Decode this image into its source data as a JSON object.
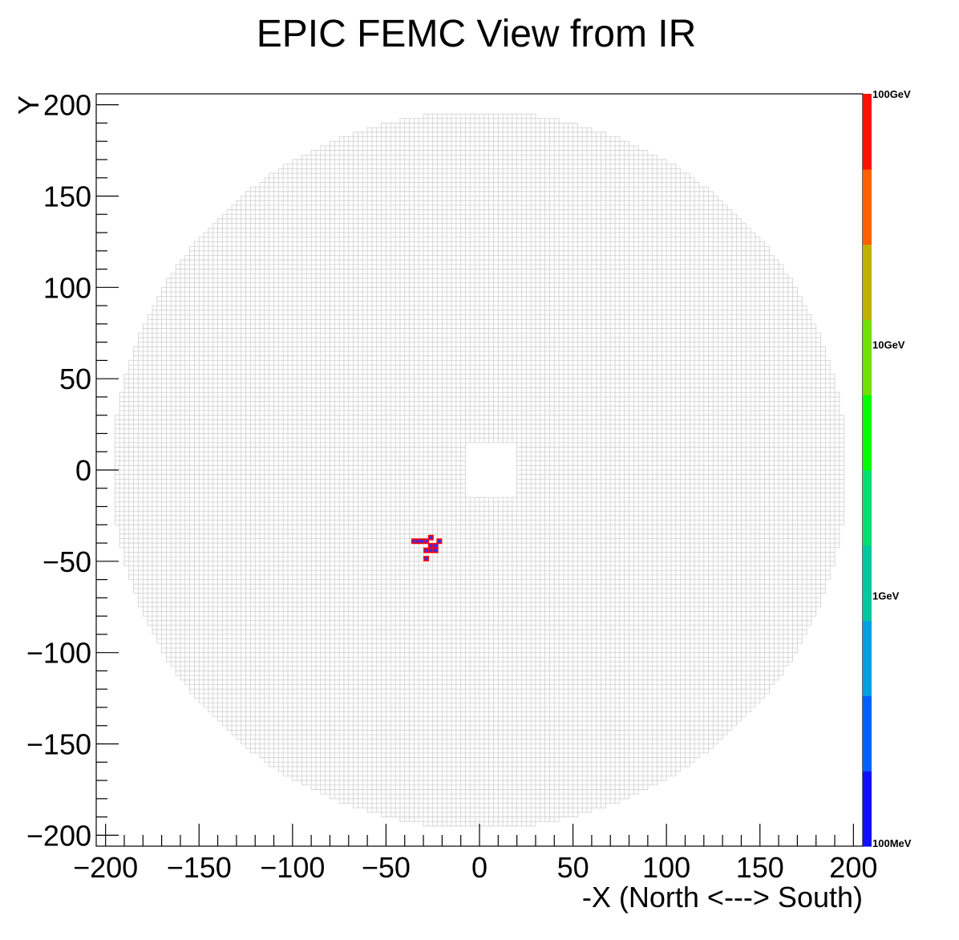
{
  "chart_data": {
    "type": "heatmap",
    "title": "EPIC FEMC View from IR",
    "xlabel": "-X (North <---> South)",
    "ylabel": "Y",
    "xlim": [
      -205,
      205
    ],
    "ylim": [
      -206,
      206
    ],
    "x_ticks": [
      {
        "value": -200,
        "label": "−200"
      },
      {
        "value": -150,
        "label": "−150"
      },
      {
        "value": -100,
        "label": "−100"
      },
      {
        "value": -50,
        "label": "−50"
      },
      {
        "value": 0,
        "label": "0"
      },
      {
        "value": 50,
        "label": "50"
      },
      {
        "value": 100,
        "label": "100"
      },
      {
        "value": 150,
        "label": "150"
      },
      {
        "value": 200,
        "label": "200"
      }
    ],
    "y_ticks": [
      {
        "value": 200,
        "label": "200"
      },
      {
        "value": 150,
        "label": "150"
      },
      {
        "value": 100,
        "label": "100"
      },
      {
        "value": 50,
        "label": "50"
      },
      {
        "value": 0,
        "label": "0"
      },
      {
        "value": -50,
        "label": "−50"
      },
      {
        "value": -100,
        "label": "−100"
      },
      {
        "value": -150,
        "label": "−150"
      },
      {
        "value": -200,
        "label": "−200"
      }
    ],
    "detector": {
      "cell_size": 2.5,
      "outer_radius": 196,
      "beam_hole": {
        "x": [
          -8,
          20
        ],
        "y": [
          -15,
          15
        ]
      },
      "grid_color": "#cfcfcf"
    },
    "hits": [
      {
        "x": -35,
        "y": -39,
        "energy_gev": 0.1
      },
      {
        "x": -33,
        "y": -39,
        "energy_gev": 0.1
      },
      {
        "x": -31,
        "y": -39,
        "energy_gev": 0.1
      },
      {
        "x": -28.5,
        "y": -39,
        "energy_gev": 0.1
      },
      {
        "x": -26,
        "y": -37,
        "energy_gev": 0.1
      },
      {
        "x": -21.5,
        "y": -39,
        "energy_gev": 0.1
      },
      {
        "x": -26,
        "y": -41.5,
        "energy_gev": 0.1
      },
      {
        "x": -23.5,
        "y": -41.5,
        "energy_gev": 0.1
      },
      {
        "x": -28.5,
        "y": -44,
        "energy_gev": 0.1
      },
      {
        "x": -26,
        "y": -44,
        "energy_gev": 0.1
      },
      {
        "x": -23.5,
        "y": -44,
        "energy_gev": 0.1
      },
      {
        "x": -28.5,
        "y": -48.5,
        "energy_gev": 0.1
      }
    ],
    "colorbar": {
      "scale": "log",
      "range_gev": [
        0.1,
        100
      ],
      "labels": [
        {
          "value": 100,
          "label": "100GeV"
        },
        {
          "value": 10,
          "label": "10GeV"
        },
        {
          "value": 1,
          "label": "1GeV"
        },
        {
          "value": 0.1,
          "label": "100MeV"
        }
      ],
      "colors": [
        "#1010ff",
        "#0060ff",
        "#00a0e0",
        "#00c8a0",
        "#00e070",
        "#00ff00",
        "#70e000",
        "#c0b000",
        "#ff6000",
        "#ff1000"
      ]
    },
    "hit_fill_color": "#3030ff",
    "hit_outline_color": "#ff0000"
  }
}
